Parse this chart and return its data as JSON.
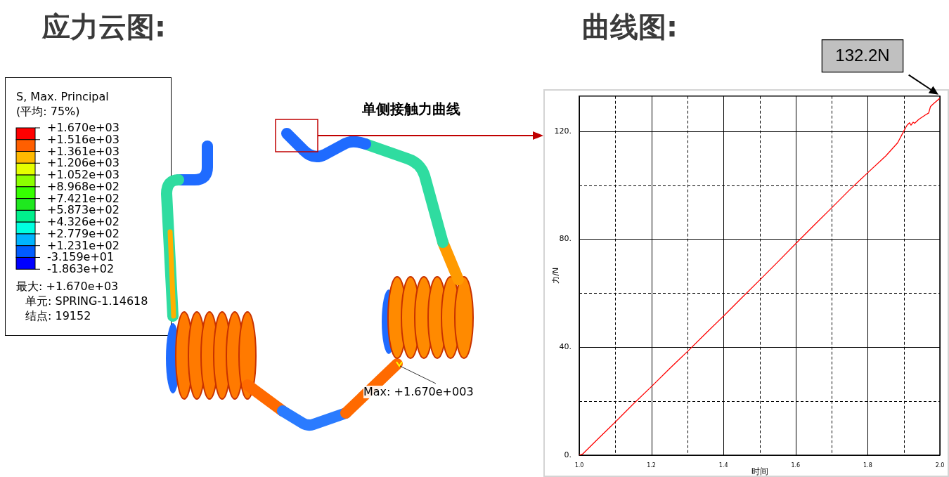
{
  "chart_data": [
    {
      "type": "other",
      "title": "应力云图:",
      "annotations": [
        "S, Max. Principal",
        "(平均: 75%)",
        "+1.670e+03",
        "+1.516e+03",
        "+1.361e+03",
        "+1.206e+03",
        "+1.052e+03",
        "+8.968e+02",
        "+7.421e+02",
        "+5.873e+02",
        "+4.326e+02",
        "+2.779e+02",
        "+1.231e+02",
        "-3.159e+01",
        "-1.863e+02",
        "最大: +1.670e+03",
        "单元: SPRING-1.14618",
        "结点: 19152",
        "Max: +1.670e+003"
      ]
    },
    {
      "type": "line",
      "title": "曲线图:",
      "xlabel": "时间",
      "ylabel": "力/N",
      "x": [
        1.0,
        1.01,
        1.05,
        1.1,
        1.15,
        1.2,
        1.25,
        1.3,
        1.35,
        1.4,
        1.45,
        1.5,
        1.55,
        1.6,
        1.65,
        1.7,
        1.75,
        1.8,
        1.85,
        1.883,
        1.9,
        1.909,
        1.916,
        1.92,
        1.926,
        1.93,
        1.942,
        1.961,
        1.969,
        1.974,
        1.981,
        2.0
      ],
      "series": [
        {
          "color": "#ff0000",
          "values": [
            0,
            0.5,
            5.8,
            12.3,
            19,
            25.4,
            32,
            38.4,
            45,
            51.5,
            58.2,
            64.8,
            71.5,
            78.3,
            85,
            91.6,
            98.3,
            104.6,
            110.8,
            115.7,
            120,
            122.2,
            123.1,
            122.2,
            123.3,
            122.9,
            124.4,
            126.1,
            126.7,
            129.1,
            130,
            132.2
          ]
        }
      ],
      "xlim": [
        1,
        2
      ],
      "xticks": [
        {
          "value": 1,
          "label": "1.0"
        },
        {
          "value": 1.1,
          "label": null
        },
        1.2,
        {
          "value": 1.3,
          "label": null
        },
        1.4,
        {
          "value": 1.5,
          "label": null
        },
        1.6,
        {
          "value": 1.7,
          "label": null
        },
        1.8,
        {
          "value": 1.9,
          "label": null
        },
        {
          "value": 2,
          "label": "2.0"
        }
      ],
      "ylim": [
        0,
        133
      ],
      "yticks": [
        {
          "value": 0,
          "label": "0."
        },
        {
          "value": 20,
          "label": null
        },
        {
          "value": 40,
          "label": "40."
        },
        {
          "value": 60,
          "label": null
        },
        {
          "value": 80,
          "label": "80."
        },
        {
          "value": 100,
          "label": null
        },
        {
          "value": 120,
          "label": "120."
        }
      ],
      "grid": true,
      "legend": false,
      "marker": "none",
      "line_style": "solid",
      "annotations": [
        "单侧接触力曲线",
        "132.2N"
      ]
    }
  ]
}
